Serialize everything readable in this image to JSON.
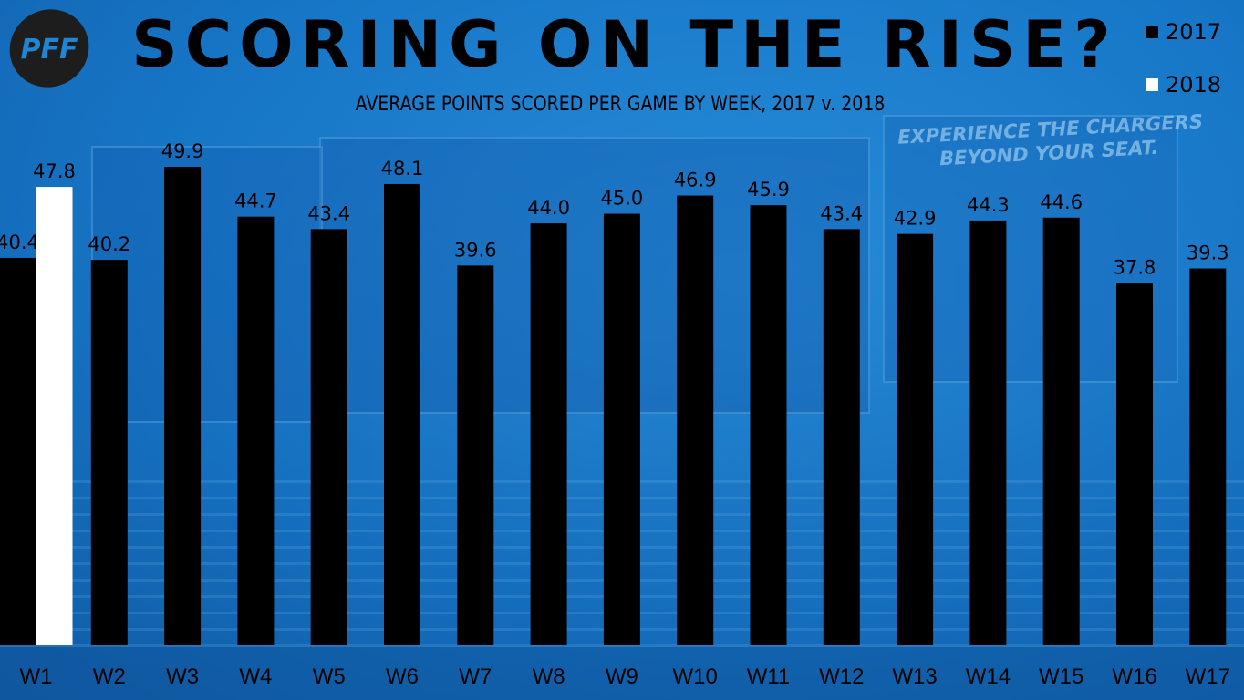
{
  "header": {
    "logo_text": "PFF",
    "title": "SCORING ON THE RISE?",
    "subtitle": "AVERAGE POINTS SCORED PER GAME BY WEEK, 2017 v. 2018"
  },
  "background": {
    "board_right_line1": "EXPERIENCE THE CHARGERS",
    "board_right_line2": "BEYOND YOUR SEAT."
  },
  "colors": {
    "background": "#1f86d6",
    "series_2017": "#000000",
    "series_2018": "#ffffff"
  },
  "chart_data": {
    "type": "bar",
    "title": "SCORING ON THE RISE?",
    "subtitle": "AVERAGE POINTS SCORED PER GAME BY WEEK, 2017 v. 2018",
    "xlabel": "",
    "ylabel": "",
    "categories": [
      "W1",
      "W2",
      "W3",
      "W4",
      "W5",
      "W6",
      "W7",
      "W8",
      "W9",
      "W10",
      "W11",
      "W12",
      "W13",
      "W14",
      "W15",
      "W16",
      "W17"
    ],
    "series": [
      {
        "name": "2017",
        "color": "#000000",
        "values": [
          40.4,
          40.2,
          49.9,
          44.7,
          43.4,
          48.1,
          39.6,
          44.0,
          45.0,
          46.9,
          45.9,
          43.4,
          42.9,
          44.3,
          44.6,
          37.8,
          39.3
        ]
      },
      {
        "name": "2018",
        "color": "#ffffff",
        "values": [
          47.8,
          null,
          null,
          null,
          null,
          null,
          null,
          null,
          null,
          null,
          null,
          null,
          null,
          null,
          null,
          null,
          null
        ]
      }
    ],
    "ylim": [
      0,
      49.9
    ],
    "grid": false,
    "legend_position": "top-right",
    "data_labels": true
  }
}
